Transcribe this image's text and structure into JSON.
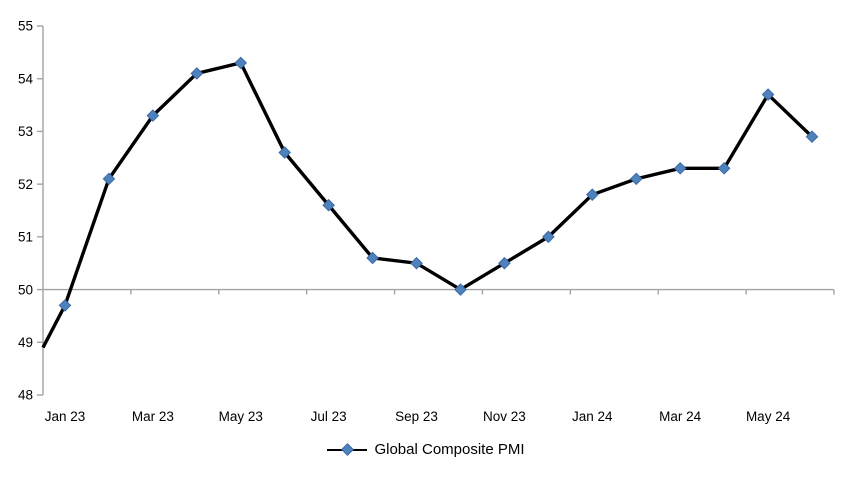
{
  "chart_data": {
    "type": "line",
    "title": "",
    "categories": [
      "Jan 23",
      "Feb 23",
      "Mar 23",
      "Apr 23",
      "May 23",
      "Jun 23",
      "Jul 23",
      "Aug 23",
      "Sep 23",
      "Oct 23",
      "Nov 23",
      "Dec 23",
      "Jan 24",
      "Feb 24",
      "Mar 24",
      "Apr 24",
      "May 24",
      "Jun 24"
    ],
    "series": [
      {
        "name": "Global Composite PMI",
        "values": [
          49.7,
          52.1,
          53.3,
          54.1,
          54.3,
          52.6,
          51.6,
          50.6,
          50.5,
          50.0,
          50.5,
          51.0,
          51.8,
          52.1,
          52.3,
          52.3,
          53.7,
          52.9
        ]
      }
    ],
    "axis_edge_start_value": 48.9,
    "ylim": [
      48,
      55
    ],
    "y_tick_step": 1,
    "y_tick_labels": [
      "48",
      "49",
      "50",
      "51",
      "52",
      "53",
      "54",
      "55"
    ],
    "x_tick_labels": [
      "Jan 23",
      "Mar 23",
      "May 23",
      "Jul 23",
      "Sep 23",
      "Nov 23",
      "Jan 24",
      "Mar 24",
      "May 24"
    ],
    "x_label_every": 2,
    "x_axis_crosses_at": 50,
    "grid": false,
    "legend_position": "bottom",
    "colors": {
      "line": "#000000",
      "marker_fill": "#4f81bd",
      "marker_edge": "#3a6ba6",
      "axis": "#a3a3a3",
      "text": "#000000"
    }
  },
  "legend": {
    "label": "Global Composite PMI"
  }
}
